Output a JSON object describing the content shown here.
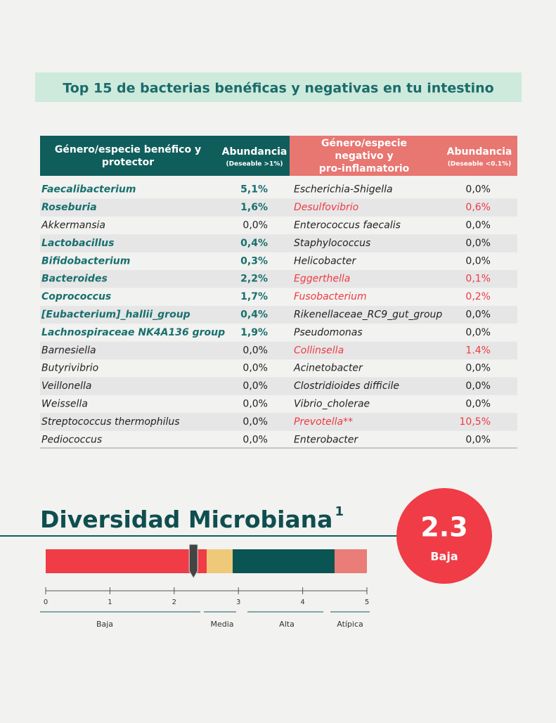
{
  "title": "Top 15 de bacterias benéficas y negativas en tu intestino",
  "table": {
    "headers": {
      "beneficial": "Género/especie benéfico y protector",
      "beneficial_abundance": "Abundancia",
      "beneficial_note": "(Deseable >1%)",
      "negative": "Género/especie negativo y pro-inflamatorio",
      "negative_abundance": "Abundancia",
      "negative_note": "(Deseable <0.1%)"
    },
    "rows": [
      [
        {
          "text": "Faecalibacterium",
          "color": "#17706e"
        },
        {
          "text": "5,1%",
          "color": "#17706e"
        },
        {
          "text": "Escherichia-Shigella",
          "color": "#222222"
        },
        {
          "text": "0,0%",
          "color": "#222222"
        }
      ],
      [
        {
          "text": "Roseburia",
          "color": "#17706e"
        },
        {
          "text": "1,6%",
          "color": "#17706e"
        },
        {
          "text": "Desulfovibrio",
          "color": "#ee3a44"
        },
        {
          "text": "0,6%",
          "color": "#ee3a44"
        }
      ],
      [
        {
          "text": "Akkermansia",
          "color": "#222222"
        },
        {
          "text": "0,0%",
          "color": "#222222"
        },
        {
          "text": "Enterococcus faecalis",
          "color": "#222222"
        },
        {
          "text": "0,0%",
          "color": "#222222"
        }
      ],
      [
        {
          "text": "Lactobacillus",
          "color": "#17706e"
        },
        {
          "text": "0,4%",
          "color": "#17706e"
        },
        {
          "text": "Staphylococcus",
          "color": "#222222"
        },
        {
          "text": "0,0%",
          "color": "#222222"
        }
      ],
      [
        {
          "text": "Bifidobacterium",
          "color": "#17706e"
        },
        {
          "text": "0,3%",
          "color": "#17706e"
        },
        {
          "text": "Helicobacter",
          "color": "#222222"
        },
        {
          "text": "0,0%",
          "color": "#222222"
        }
      ],
      [
        {
          "text": "Bacteroides",
          "color": "#17706e"
        },
        {
          "text": "2,2%",
          "color": "#17706e"
        },
        {
          "text": "Eggerthella",
          "color": "#ee3a44"
        },
        {
          "text": "0,1%",
          "color": "#ee3a44"
        }
      ],
      [
        {
          "text": "Coprococcus",
          "color": "#17706e"
        },
        {
          "text": "1,7%",
          "color": "#17706e"
        },
        {
          "text": "Fusobacterium",
          "color": "#ee3a44"
        },
        {
          "text": "0,2%",
          "color": "#ee3a44"
        }
      ],
      [
        {
          "text": "[Eubacterium]_hallii_group",
          "color": "#17706e"
        },
        {
          "text": "0,4%",
          "color": "#17706e"
        },
        {
          "text": "Rikenellaceae_RC9_gut_group",
          "color": "#222222"
        },
        {
          "text": "0,0%",
          "color": "#222222"
        }
      ],
      [
        {
          "text": "Lachnospiraceae NK4A136 group",
          "color": "#17706e"
        },
        {
          "text": "1,9%",
          "color": "#17706e"
        },
        {
          "text": "Pseudomonas",
          "color": "#222222"
        },
        {
          "text": "0,0%",
          "color": "#222222"
        }
      ],
      [
        {
          "text": "Barnesiella",
          "color": "#222222"
        },
        {
          "text": "0,0%",
          "color": "#222222"
        },
        {
          "text": "Collinsella",
          "color": "#ee3a44"
        },
        {
          "text": "1.4%",
          "color": "#ee3a44"
        }
      ],
      [
        {
          "text": "Butyrivibrio",
          "color": "#222222"
        },
        {
          "text": "0,0%",
          "color": "#222222"
        },
        {
          "text": "Acinetobacter",
          "color": "#222222"
        },
        {
          "text": "0,0%",
          "color": "#222222"
        }
      ],
      [
        {
          "text": "Veillonella",
          "color": "#222222"
        },
        {
          "text": "0,0%",
          "color": "#222222"
        },
        {
          "text": "Clostridioides difficile",
          "color": "#222222"
        },
        {
          "text": "0,0%",
          "color": "#222222"
        }
      ],
      [
        {
          "text": "Weissella",
          "color": "#222222"
        },
        {
          "text": "0,0%",
          "color": "#222222"
        },
        {
          "text": "Vibrio_cholerae",
          "color": "#222222"
        },
        {
          "text": "0,0%",
          "color": "#222222"
        }
      ],
      [
        {
          "text": "Streptococcus thermophilus",
          "color": "#222222"
        },
        {
          "text": "0,0%",
          "color": "#222222"
        },
        {
          "text": "Prevotella**",
          "color": "#ee3a44"
        },
        {
          "text": "10,5%",
          "color": "#ee3a44"
        }
      ],
      [
        {
          "text": "Pediococcus",
          "color": "#222222"
        },
        {
          "text": "0,0%",
          "color": "#222222"
        },
        {
          "text": "Enterobacter",
          "color": "#222222"
        },
        {
          "text": "0,0%",
          "color": "#222222"
        }
      ]
    ]
  },
  "diversity": {
    "heading": "Diversidad Microbiana",
    "footnote": "1",
    "score": 2.3,
    "score_label": "Baja",
    "scale": [
      0,
      1,
      2,
      3,
      4,
      5
    ],
    "ranges": [
      "Baja",
      "Media",
      "Alta",
      "Atípica"
    ]
  }
}
